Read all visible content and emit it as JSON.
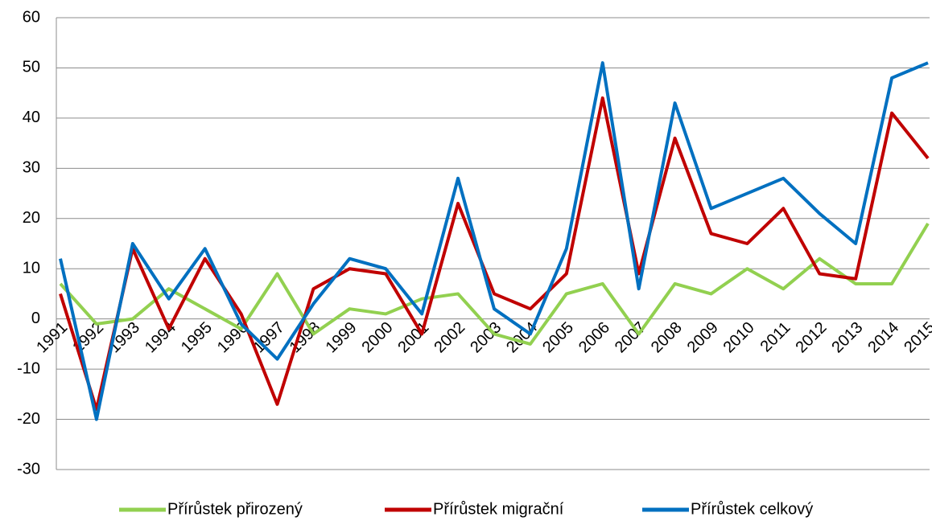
{
  "chart_data": {
    "type": "line",
    "categories": [
      "1991",
      "1992",
      "1993",
      "1994",
      "1995",
      "1996",
      "1997",
      "1998",
      "1999",
      "2000",
      "2001",
      "2002",
      "2003",
      "2004",
      "2005",
      "2006",
      "2007",
      "2008",
      "2009",
      "2010",
      "2011",
      "2012",
      "2013",
      "2014",
      "2015"
    ],
    "series": [
      {
        "name": "Přírůstek přirozený",
        "color": "#92d050",
        "values": [
          7,
          -1,
          0,
          6,
          2,
          -2,
          9,
          -3,
          2,
          1,
          4,
          5,
          -3,
          -5,
          5,
          7,
          -3,
          7,
          5,
          10,
          6,
          12,
          7,
          7,
          19
        ]
      },
      {
        "name": "Přírůstek migrační",
        "color": "#c00000",
        "values": [
          5,
          -18,
          14,
          -2,
          12,
          1,
          -17,
          6,
          10,
          9,
          -3,
          23,
          5,
          2,
          9,
          44,
          9,
          36,
          17,
          15,
          22,
          9,
          8,
          41,
          32
        ]
      },
      {
        "name": "Přírůstek celkový",
        "color": "#0070c0",
        "values": [
          12,
          -20,
          15,
          4,
          14,
          -1,
          -8,
          3,
          12,
          10,
          1,
          28,
          2,
          -3,
          14,
          51,
          6,
          43,
          22,
          25,
          28,
          21,
          15,
          48,
          51
        ]
      }
    ],
    "ylim": [
      -30,
      60
    ],
    "yticks": [
      -30,
      -20,
      -10,
      0,
      10,
      20,
      30,
      40,
      50,
      60
    ],
    "grid": true,
    "legend": "bottom"
  }
}
